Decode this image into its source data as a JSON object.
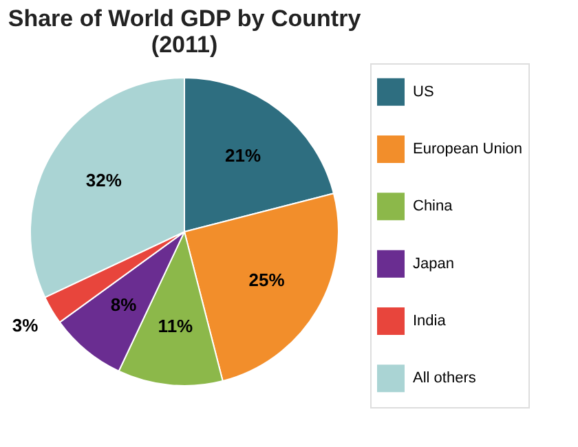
{
  "chart_data": {
    "type": "pie",
    "title": "Share of World GDP by Country (2011)",
    "categories": [
      "US",
      "European Union",
      "China",
      "Japan",
      "India",
      "All others"
    ],
    "values": [
      21,
      25,
      11,
      8,
      3,
      32
    ],
    "colors": [
      "#2e6e80",
      "#f28e2b",
      "#8cb84a",
      "#6a2d91",
      "#e8453c",
      "#aad4d4"
    ],
    "value_labels": [
      "21%",
      "25%",
      "11%",
      "8%",
      "3%",
      "32%"
    ],
    "legend": "right"
  }
}
